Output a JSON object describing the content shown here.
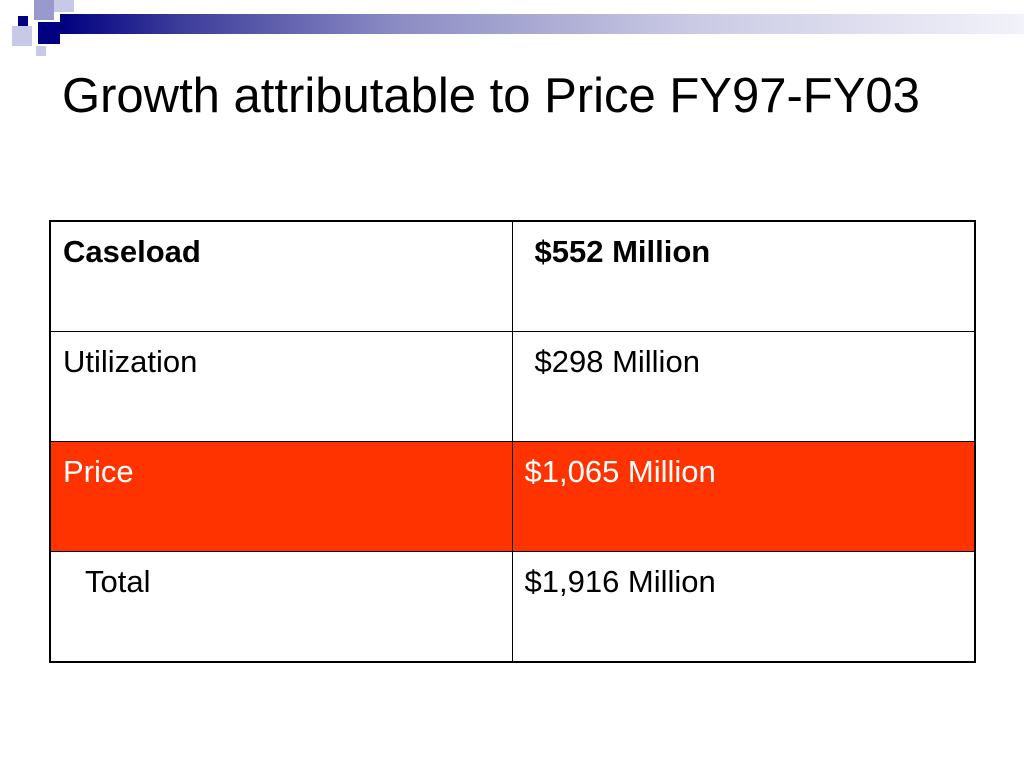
{
  "slide": {
    "title": "Growth attributable to Price FY97-FY03",
    "colors": {
      "navy": "#000080",
      "highlight_row": "#ff3300",
      "highlight_text": "#ffffff"
    }
  },
  "table": {
    "rows": [
      {
        "label": "Caseload",
        "value": "$552 Million",
        "bold": true,
        "highlight": false
      },
      {
        "label": "Utilization",
        "value": "$298 Million",
        "bold": false,
        "highlight": false
      },
      {
        "label": "Price",
        "value": "$1,065 Million",
        "bold": false,
        "highlight": true
      },
      {
        "label": "Total",
        "value": "$1,916 Million",
        "bold": false,
        "highlight": false
      }
    ]
  }
}
